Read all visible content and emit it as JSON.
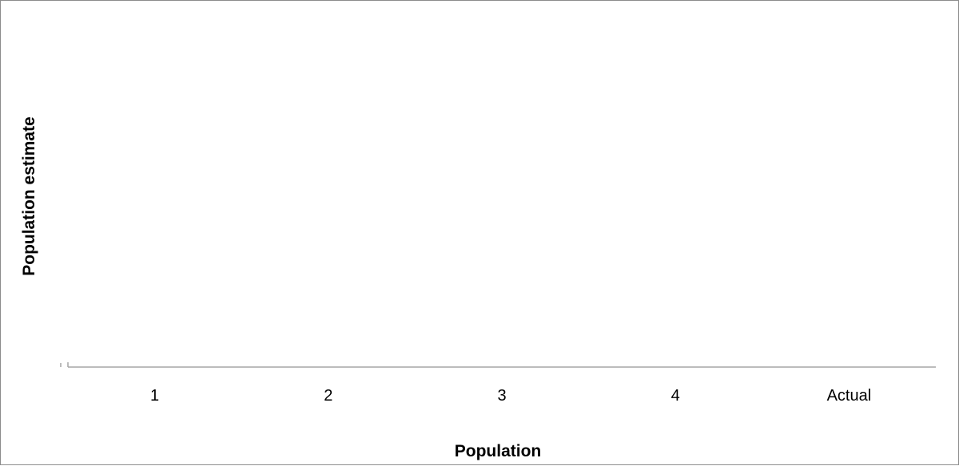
{
  "chart_data": {
    "type": "bar",
    "categories": [
      "1",
      "2",
      "3",
      "4",
      "Actual"
    ],
    "series": [
      {
        "values": [
          0,
          0,
          0,
          0,
          0
        ]
      }
    ],
    "xlabel": "Population",
    "ylabel": "Population estimate",
    "grid": false,
    "legend": "none",
    "colors": {
      "axis": "#a6a6a6",
      "frame": "#8c8c8c",
      "bar": "#4f81bd",
      "text": "#000000"
    }
  }
}
